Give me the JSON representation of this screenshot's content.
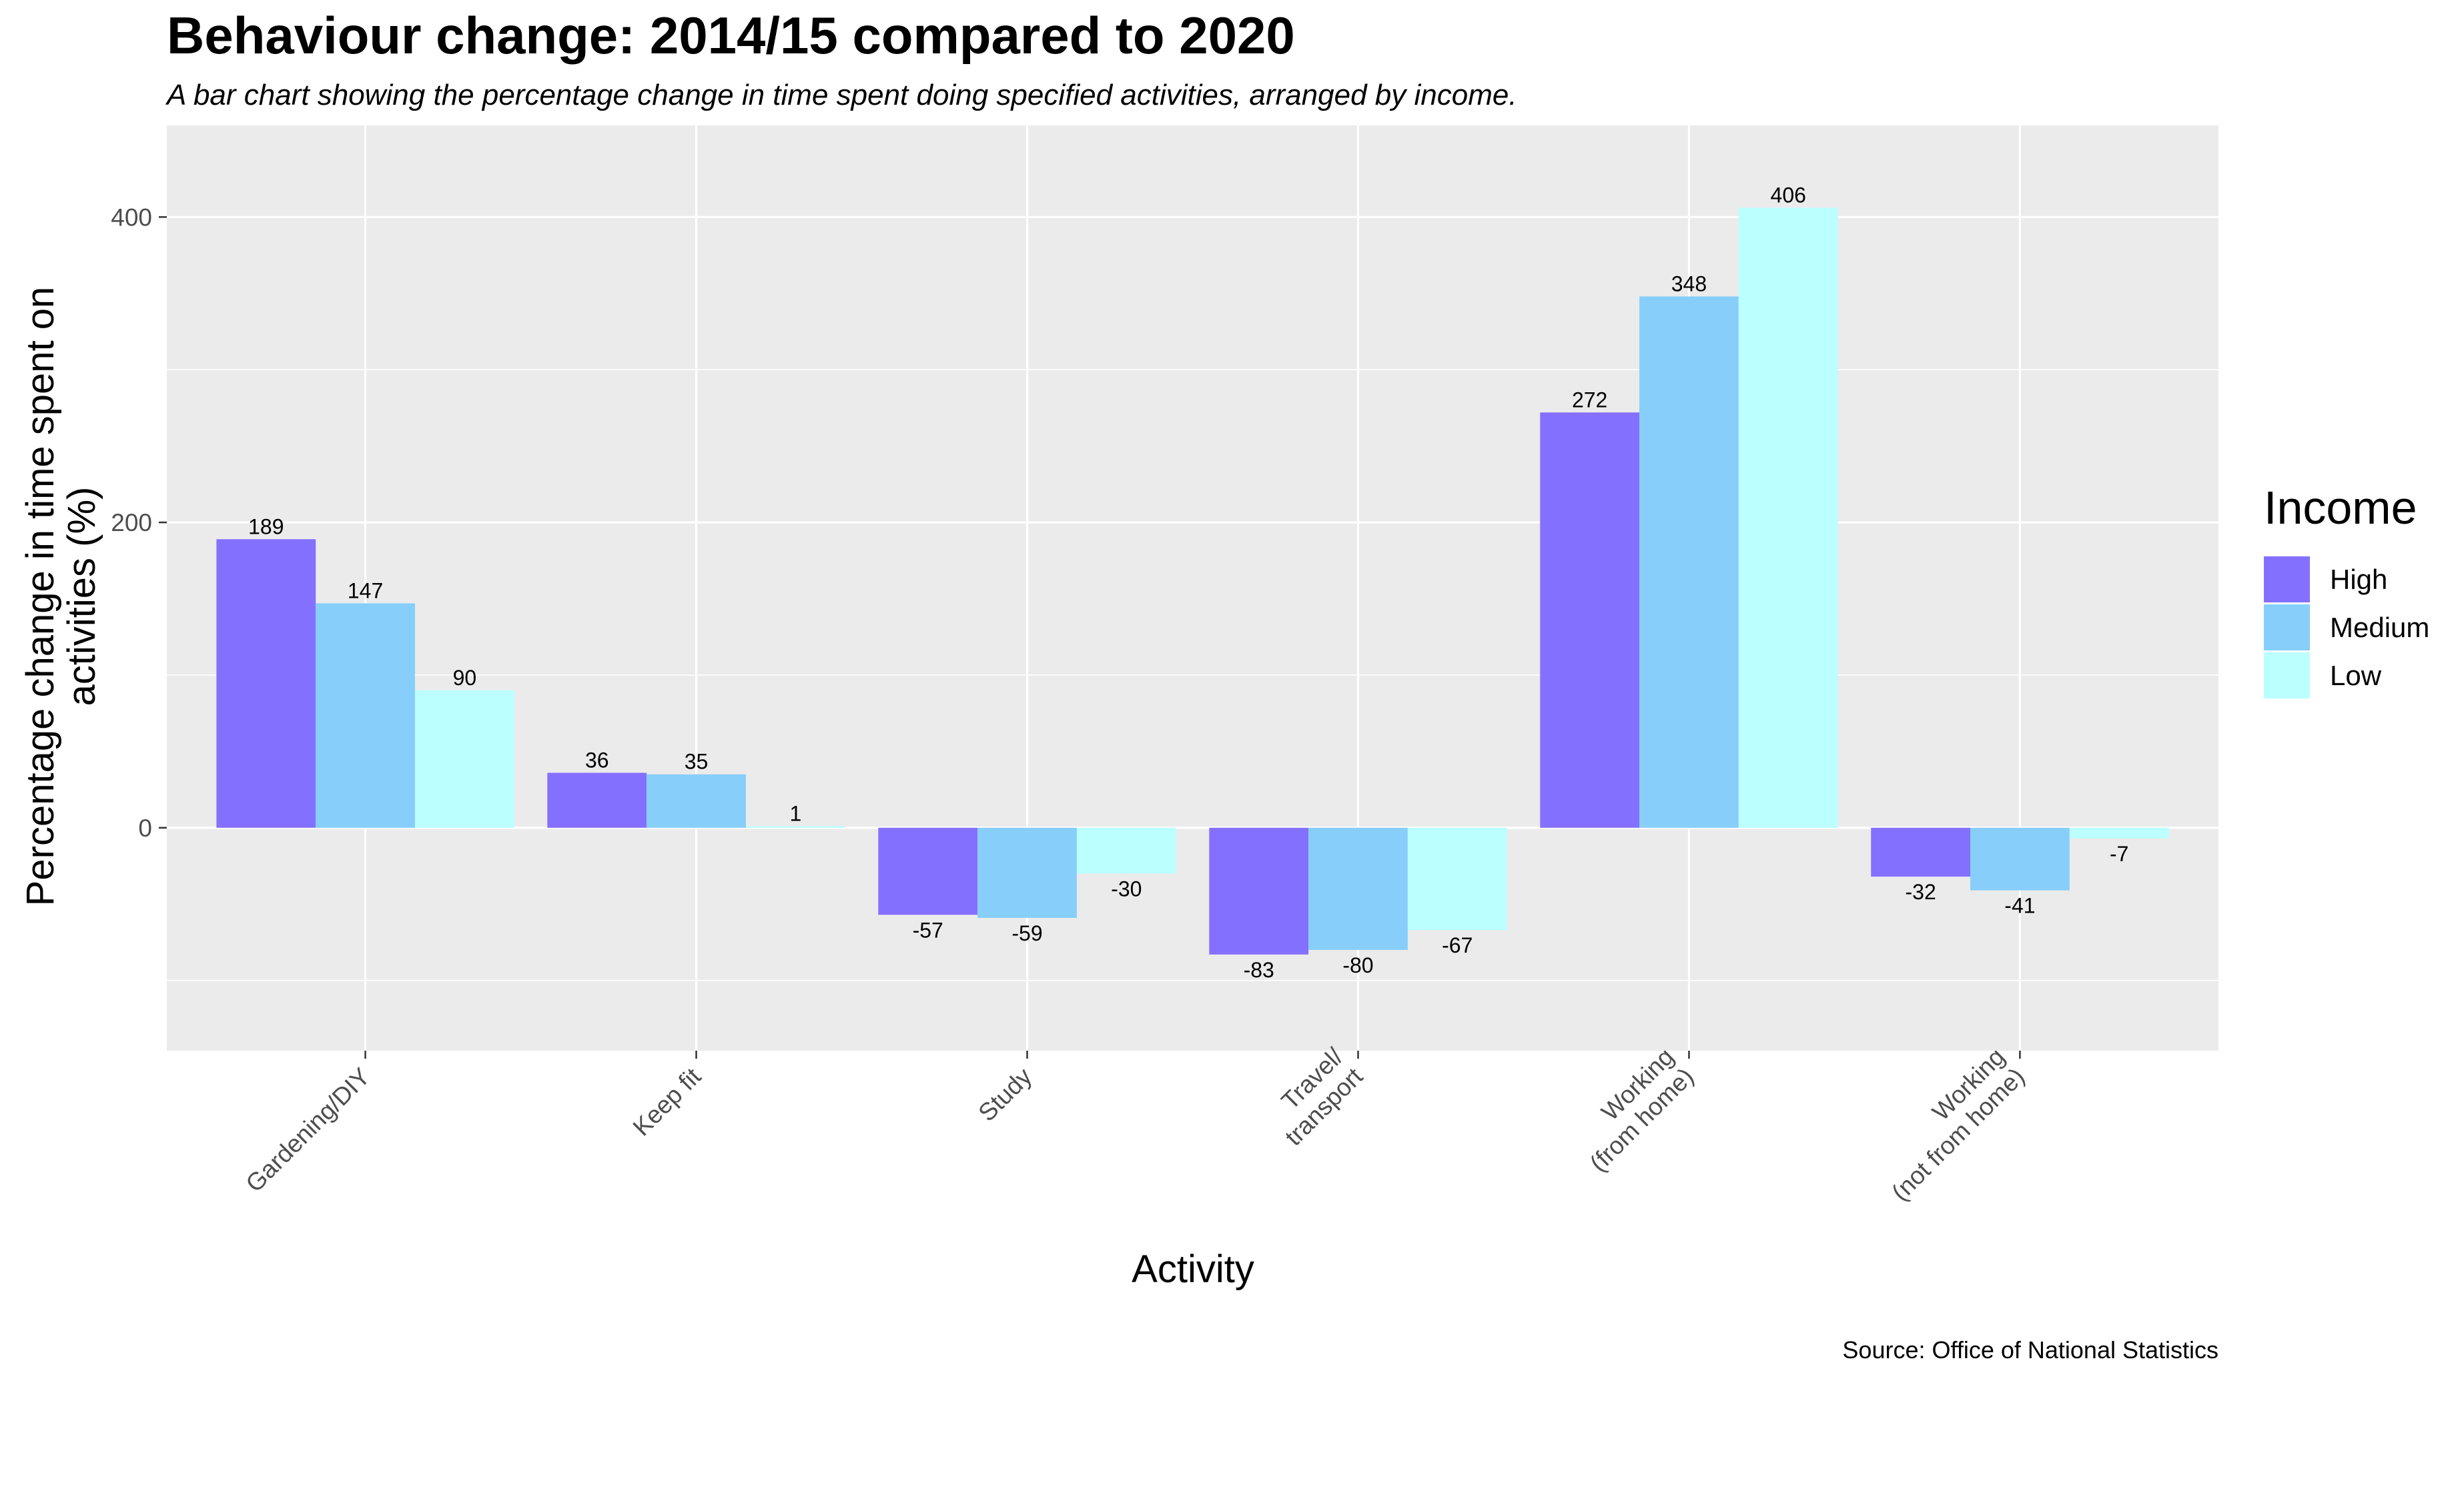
{
  "chart_data": {
    "type": "bar",
    "title": "Behaviour change: 2014/15 compared to 2020",
    "subtitle": "A bar chart showing the percentage change in time spent doing specified activities, arranged by income.",
    "xlabel": "Activity",
    "ylabel_lines": [
      "Percentage change in time spent on",
      "activities (%)"
    ],
    "caption": "Source: Office of National Statistics",
    "categories": [
      [
        "Gardening/DIY"
      ],
      [
        "Keep fit"
      ],
      [
        "Study"
      ],
      [
        "Travel/",
        "transport"
      ],
      [
        "Working",
        "(from home)"
      ],
      [
        "Working",
        "(not from home)"
      ]
    ],
    "series": [
      {
        "name": "High",
        "color": "#8470ff",
        "values": [
          189,
          36,
          -57,
          -83,
          272,
          -32
        ]
      },
      {
        "name": "Medium",
        "color": "#87cefa",
        "values": [
          147,
          35,
          -59,
          -80,
          348,
          -41
        ]
      },
      {
        "name": "Low",
        "color": "#bbffff",
        "values": [
          90,
          1,
          -30,
          -67,
          406,
          -7
        ]
      }
    ],
    "ylim": [
      -146,
      460
    ],
    "yticks": [
      0,
      200,
      400
    ],
    "grid": true,
    "panel_background": "#ebebeb",
    "legend": {
      "title": "Income",
      "position": "right"
    }
  }
}
